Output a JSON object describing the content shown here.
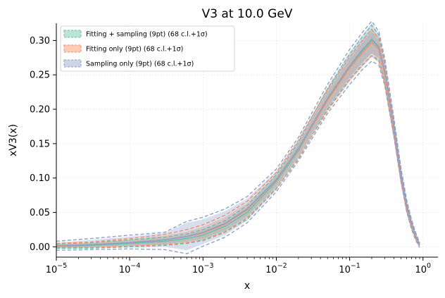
{
  "chart_data": {
    "type": "area",
    "title": "V3 at 10.0 GeV",
    "xlabel": "x",
    "ylabel": "xV3(x)",
    "xscale": "log",
    "xlim": [
      1e-05,
      1.6
    ],
    "ylim": [
      -0.015,
      0.325
    ],
    "xticks": [
      {
        "value": 1e-05,
        "base": "10",
        "exp": "−5"
      },
      {
        "value": 0.0001,
        "base": "10",
        "exp": "−4"
      },
      {
        "value": 0.001,
        "base": "10",
        "exp": "−3"
      },
      {
        "value": 0.01,
        "base": "10",
        "exp": "−2"
      },
      {
        "value": 0.1,
        "base": "10",
        "exp": "−1"
      },
      {
        "value": 1,
        "base": "10",
        "exp": "0"
      }
    ],
    "yticks": [
      {
        "value": 0.0,
        "label": "0.00"
      },
      {
        "value": 0.05,
        "label": "0.05"
      },
      {
        "value": 0.1,
        "label": "0.10"
      },
      {
        "value": 0.15,
        "label": "0.15"
      },
      {
        "value": 0.2,
        "label": "0.20"
      },
      {
        "value": 0.25,
        "label": "0.25"
      },
      {
        "value": 0.3,
        "label": "0.30"
      }
    ],
    "grid": true,
    "legend_position": "top-left",
    "x": [
      1e-05,
      3e-05,
      0.0001,
      0.0003,
      0.0006,
      0.001,
      0.002,
      0.004,
      0.01,
      0.02,
      0.05,
      0.1,
      0.15,
      0.2,
      0.25,
      0.3,
      0.4,
      0.5,
      0.6,
      0.7,
      0.8,
      0.9
    ],
    "series": [
      {
        "name": "Fitting + sampling (9pt) (68 c.l.+1σ)",
        "color": "#66c2a5",
        "fill": "#66c2a5",
        "central": [
          0.001,
          0.002,
          0.005,
          0.008,
          0.012,
          0.017,
          0.03,
          0.05,
          0.095,
          0.14,
          0.215,
          0.262,
          0.285,
          0.3,
          0.29,
          0.255,
          0.175,
          0.105,
          0.06,
          0.033,
          0.015,
          0.003
        ],
        "cl68_upper": [
          0.003,
          0.005,
          0.009,
          0.013,
          0.018,
          0.024,
          0.037,
          0.058,
          0.103,
          0.15,
          0.228,
          0.278,
          0.303,
          0.318,
          0.305,
          0.268,
          0.184,
          0.111,
          0.065,
          0.037,
          0.018,
          0.004
        ],
        "cl68_lower": [
          -0.002,
          -0.001,
          0.001,
          0.003,
          0.006,
          0.01,
          0.022,
          0.042,
          0.086,
          0.13,
          0.202,
          0.246,
          0.268,
          0.282,
          0.275,
          0.242,
          0.166,
          0.099,
          0.055,
          0.029,
          0.012,
          0.001
        ],
        "sigma_upper": [
          0.004,
          0.006,
          0.01,
          0.014,
          0.019,
          0.025,
          0.038,
          0.06,
          0.105,
          0.152,
          0.23,
          0.28,
          0.306,
          0.322,
          0.308,
          0.27,
          0.186,
          0.113,
          0.066,
          0.038,
          0.019,
          0.005
        ],
        "sigma_lower": [
          -0.002,
          -0.002,
          0.0,
          0.002,
          0.005,
          0.009,
          0.021,
          0.04,
          0.084,
          0.128,
          0.2,
          0.244,
          0.265,
          0.278,
          0.272,
          0.24,
          0.164,
          0.097,
          0.054,
          0.028,
          0.011,
          0.001
        ]
      },
      {
        "name": "Fitting only (9pt) (68 c.l.+1σ)",
        "color": "#fc8d62",
        "fill": "#fc8d62",
        "central": [
          0.002,
          0.003,
          0.006,
          0.01,
          0.015,
          0.02,
          0.033,
          0.054,
          0.097,
          0.142,
          0.213,
          0.26,
          0.282,
          0.297,
          0.287,
          0.252,
          0.173,
          0.104,
          0.059,
          0.032,
          0.015,
          0.003
        ],
        "cl68_upper": [
          0.004,
          0.006,
          0.011,
          0.016,
          0.022,
          0.029,
          0.043,
          0.063,
          0.105,
          0.152,
          0.225,
          0.273,
          0.297,
          0.313,
          0.3,
          0.264,
          0.182,
          0.11,
          0.064,
          0.036,
          0.018,
          0.004
        ],
        "cl68_lower": [
          0.0,
          0.0,
          0.002,
          0.004,
          0.008,
          0.012,
          0.024,
          0.045,
          0.088,
          0.132,
          0.201,
          0.246,
          0.267,
          0.281,
          0.273,
          0.24,
          0.164,
          0.098,
          0.054,
          0.028,
          0.012,
          0.001
        ],
        "sigma_upper": [
          0.005,
          0.007,
          0.012,
          0.018,
          0.025,
          0.032,
          0.046,
          0.066,
          0.108,
          0.155,
          0.228,
          0.276,
          0.3,
          0.316,
          0.303,
          0.267,
          0.184,
          0.112,
          0.066,
          0.037,
          0.019,
          0.005
        ],
        "sigma_lower": [
          -0.001,
          -0.001,
          0.001,
          0.003,
          0.006,
          0.01,
          0.022,
          0.042,
          0.085,
          0.129,
          0.198,
          0.243,
          0.264,
          0.278,
          0.27,
          0.238,
          0.162,
          0.096,
          0.052,
          0.027,
          0.011,
          0.0
        ]
      },
      {
        "name": "Sampling only (9pt) (68 c.l.+1σ)",
        "color": "#8da0cb",
        "fill": "#8da0cb",
        "central": [
          0.001,
          0.003,
          0.006,
          0.01,
          0.015,
          0.021,
          0.034,
          0.055,
          0.098,
          0.143,
          0.216,
          0.263,
          0.287,
          0.302,
          0.291,
          0.256,
          0.176,
          0.106,
          0.06,
          0.033,
          0.015,
          0.003
        ],
        "cl68_upper": [
          0.006,
          0.01,
          0.015,
          0.02,
          0.035,
          0.04,
          0.052,
          0.07,
          0.11,
          0.156,
          0.232,
          0.283,
          0.308,
          0.325,
          0.31,
          0.272,
          0.186,
          0.113,
          0.066,
          0.038,
          0.019,
          0.005
        ],
        "cl68_lower": [
          -0.003,
          -0.002,
          -0.001,
          0.0,
          -0.005,
          0.004,
          0.017,
          0.038,
          0.083,
          0.128,
          0.197,
          0.24,
          0.262,
          0.275,
          0.268,
          0.238,
          0.164,
          0.097,
          0.053,
          0.027,
          0.011,
          0.0
        ],
        "sigma_upper": [
          0.008,
          0.012,
          0.017,
          0.021,
          0.037,
          0.043,
          0.055,
          0.073,
          0.113,
          0.159,
          0.236,
          0.287,
          0.312,
          0.328,
          0.313,
          0.275,
          0.188,
          0.115,
          0.068,
          0.039,
          0.02,
          0.006
        ],
        "sigma_lower": [
          -0.005,
          -0.004,
          -0.003,
          -0.004,
          -0.01,
          0.001,
          0.014,
          0.035,
          0.08,
          0.125,
          0.194,
          0.236,
          0.258,
          0.27,
          0.264,
          0.235,
          0.161,
          0.095,
          0.051,
          0.025,
          0.009,
          -0.001
        ]
      }
    ]
  }
}
